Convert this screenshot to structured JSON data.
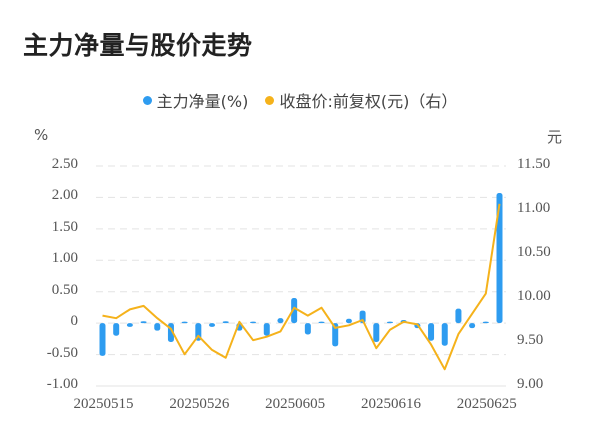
{
  "title": "主力净量与股价走势",
  "legend": [
    {
      "label": "主力净量(%)",
      "color": "#2e9cf0"
    },
    {
      "label": "收盘价:前复权(元)（右）",
      "color": "#f5b21b"
    }
  ],
  "axes": {
    "left_unit": "%",
    "right_unit": "元",
    "left_ticks": [
      "2.50",
      "2.00",
      "1.50",
      "1.00",
      "0.50",
      "0",
      "-0.50",
      "-1.00"
    ],
    "right_ticks": [
      "11.50",
      "11.00",
      "10.50",
      "10.00",
      "9.50",
      "9.00"
    ],
    "x_ticks": [
      "20250515",
      "20250526",
      "20250605",
      "20250616",
      "20250625"
    ]
  },
  "chart_data": {
    "type": "bar+line",
    "title": "主力净量与股价走势",
    "xlabel": "",
    "ylabel_left": "%",
    "ylabel_right": "元",
    "ylim_left": [
      -1.0,
      2.5
    ],
    "ylim_right": [
      9.0,
      11.5
    ],
    "grid": "horizontal dashed",
    "legend_position": "top",
    "x_tick_labels": [
      "20250515",
      "20250526",
      "20250605",
      "20250616",
      "20250625"
    ],
    "x_count": 30,
    "series": [
      {
        "name": "主力净量(%)",
        "type": "bar",
        "axis": "left",
        "color": "#2e9cf0",
        "values": [
          -0.52,
          -0.2,
          -0.06,
          0.03,
          -0.12,
          -0.3,
          0.01,
          -0.28,
          -0.06,
          0.03,
          -0.12,
          0.01,
          -0.2,
          0.08,
          0.4,
          -0.18,
          0.02,
          -0.37,
          0.07,
          0.2,
          -0.3,
          0.01,
          0.05,
          -0.08,
          -0.28,
          -0.36,
          0.23,
          -0.08,
          0.01,
          2.07
        ]
      },
      {
        "name": "收盘价:前复权(元)（右）",
        "type": "line",
        "axis": "right",
        "color": "#f5b21b",
        "values": [
          9.8,
          9.77,
          9.87,
          9.91,
          9.77,
          9.65,
          9.36,
          9.57,
          9.41,
          9.32,
          9.73,
          9.52,
          9.56,
          9.62,
          9.89,
          9.8,
          9.89,
          9.66,
          9.69,
          9.75,
          9.43,
          9.64,
          9.73,
          9.7,
          9.47,
          9.19,
          9.59,
          9.82,
          10.05,
          11.07
        ]
      }
    ]
  }
}
